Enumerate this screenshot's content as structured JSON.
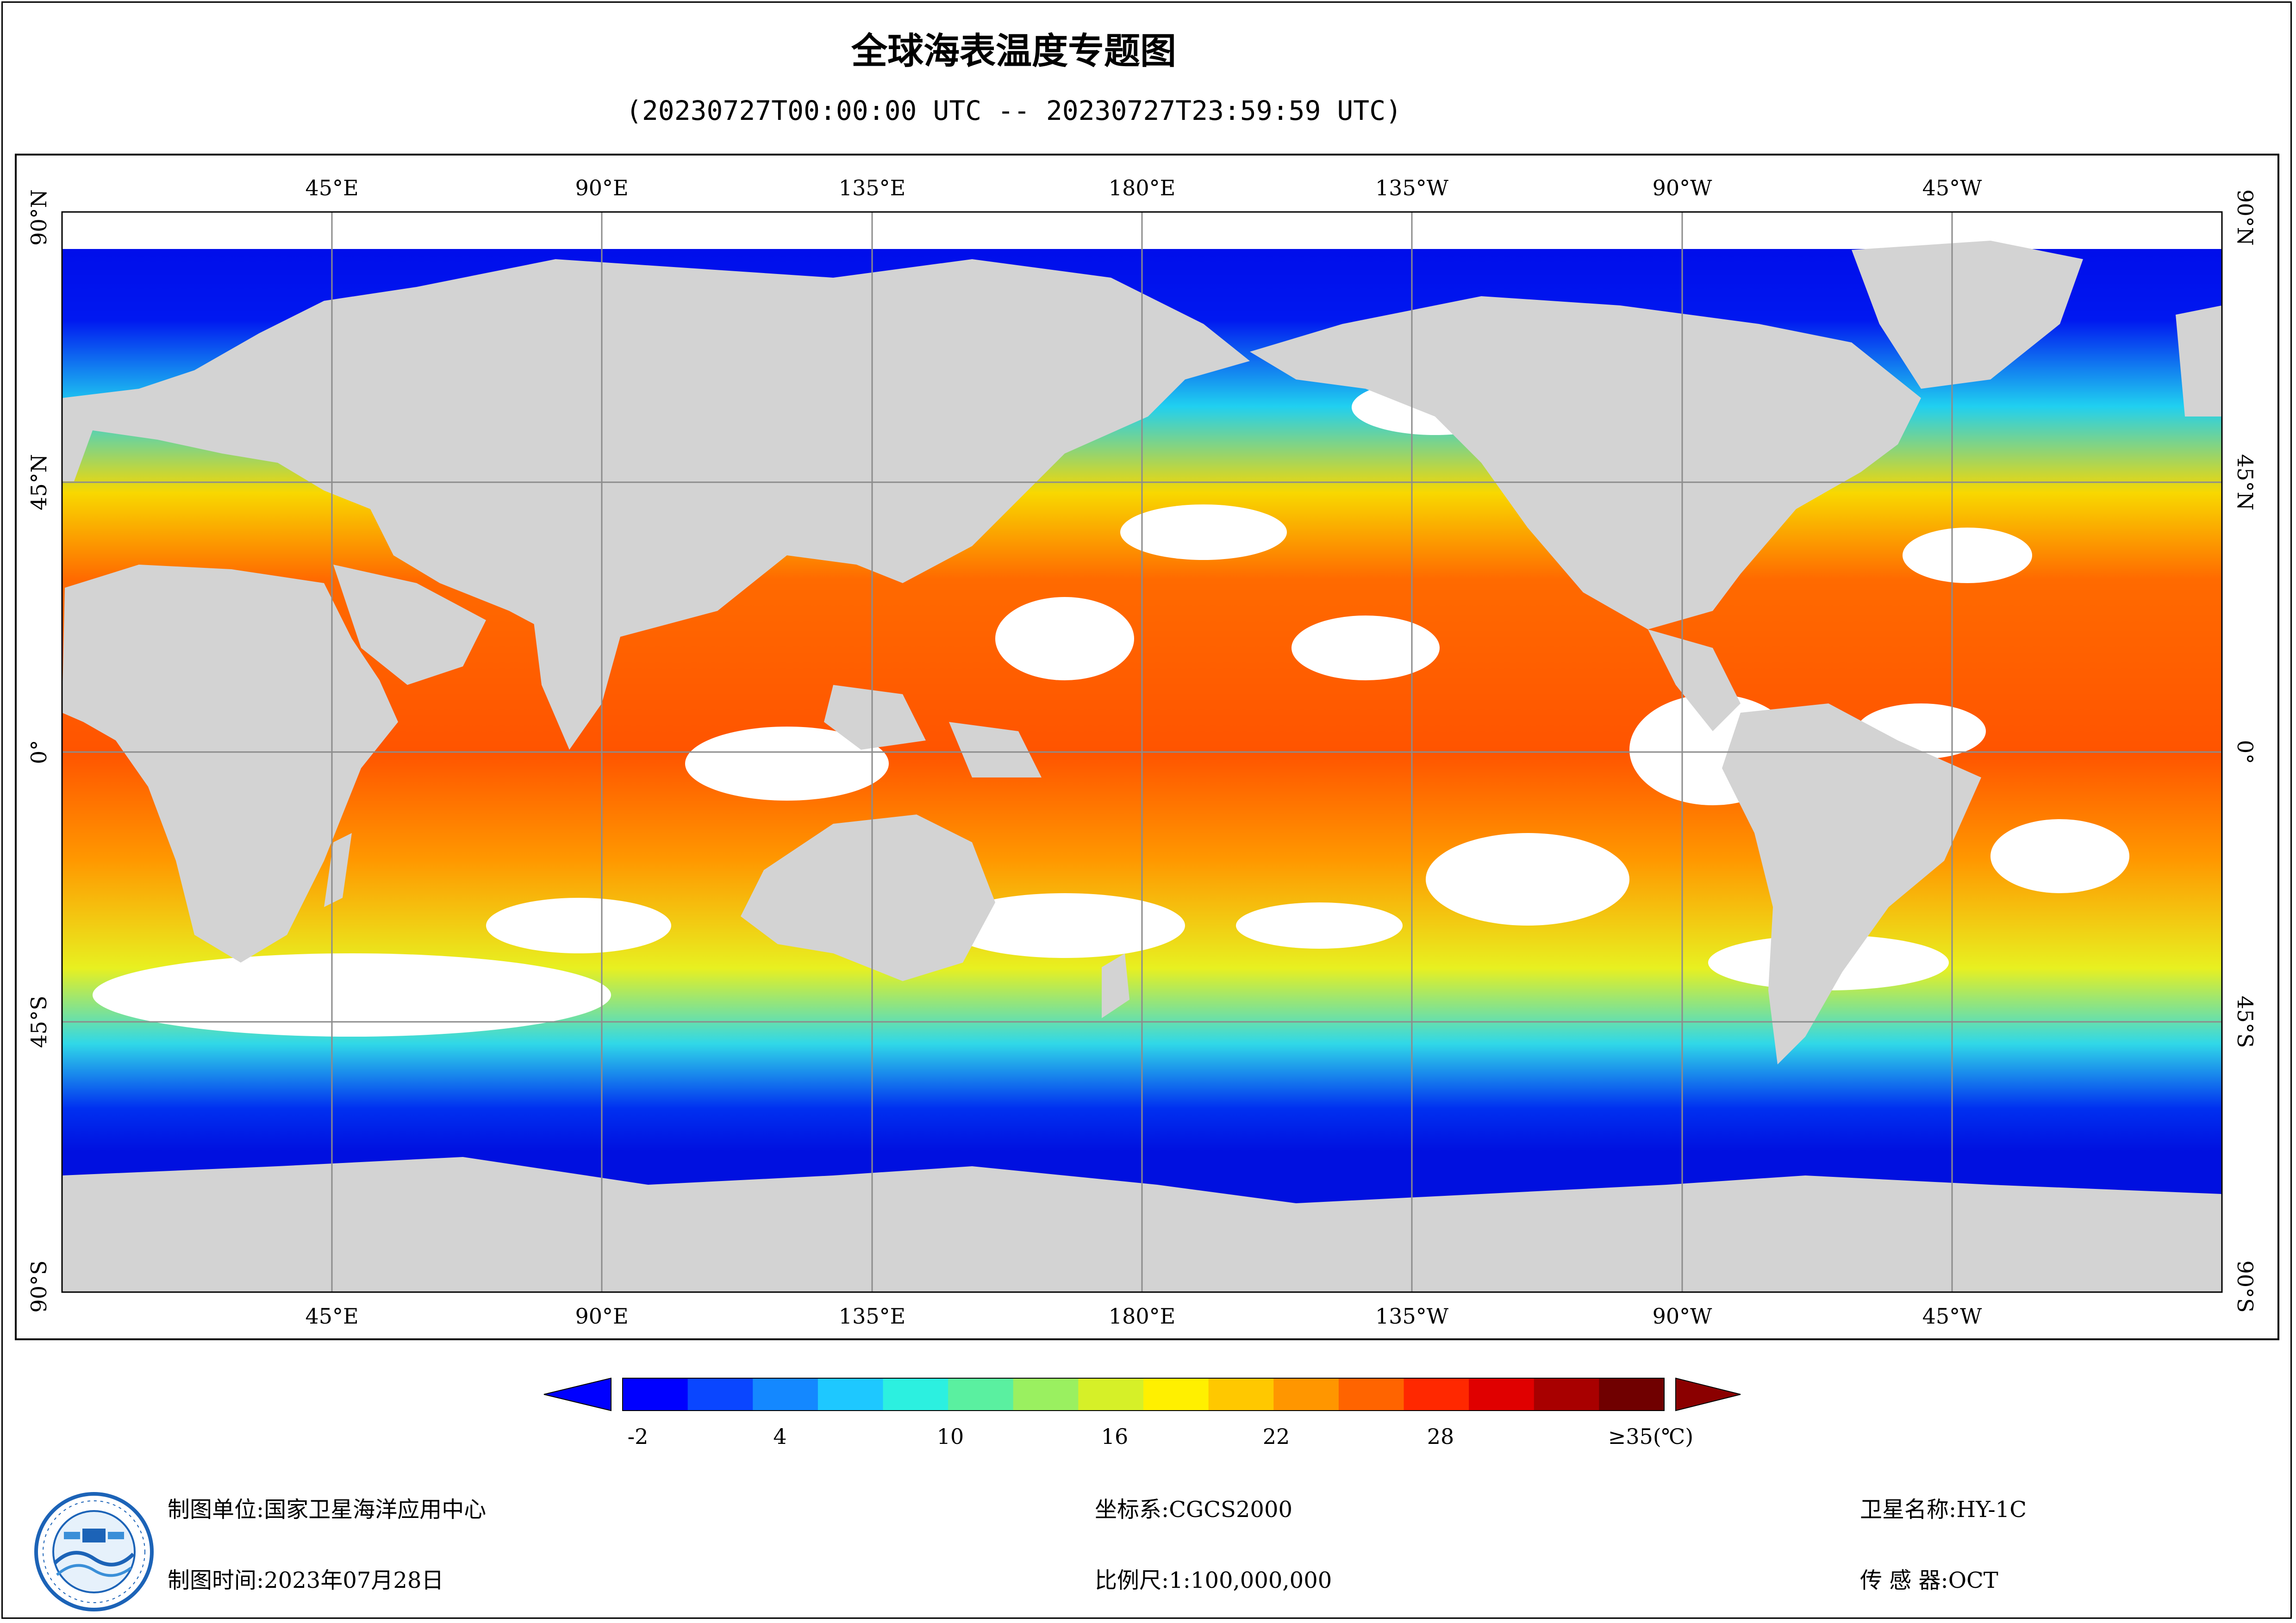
{
  "header": {
    "title": "全球海表温度专题图",
    "time_range": "(20230727T00:00:00 UTC -- 20230727T23:59:59 UTC)"
  },
  "map": {
    "projection": "equirectangular",
    "lon_labels_top": [
      "45°E",
      "90°E",
      "135°E",
      "180°E",
      "135°W",
      "90°W",
      "45°W"
    ],
    "lon_labels_bottom": [
      "45°E",
      "90°E",
      "135°E",
      "180°E",
      "135°W",
      "90°W",
      "45°W"
    ],
    "lat_labels_left": [
      "90°N",
      "45°N",
      "0°",
      "45°S",
      "90°S"
    ],
    "lat_labels_right": [
      "90°N",
      "45°N",
      "0°",
      "45°S",
      "90°S"
    ],
    "colors": {
      "land": "#d3d3d3",
      "no_data": "#ffffff",
      "grid": "#8c8c8c"
    }
  },
  "legend": {
    "tick_labels": [
      "-2",
      "4",
      "10",
      "16",
      "22",
      "28",
      "≥35(℃)"
    ],
    "colors": [
      "#0000ff",
      "#0a46ff",
      "#1488ff",
      "#1ec8ff",
      "#2cf0e0",
      "#5af0a0",
      "#9af060",
      "#d6f028",
      "#fff000",
      "#ffc800",
      "#ff9600",
      "#ff6400",
      "#ff2800",
      "#e00000",
      "#a80000",
      "#700000"
    ],
    "under_color": "#0000ff",
    "over_color": "#8b0000"
  },
  "footer": {
    "org_label": "制图单位:",
    "org_value": "国家卫星海洋应用中心",
    "date_label": "制图时间:",
    "date_value": "2023年07月28日",
    "crs_label": "坐标系:",
    "crs_value": "CGCS2000",
    "scale_label": "比例尺:",
    "scale_value": "1:100,000,000",
    "satellite_label": "卫星名称:",
    "satellite_value": "HY-1C",
    "sensor_label": "传 感 器:",
    "sensor_value": "OCT"
  }
}
